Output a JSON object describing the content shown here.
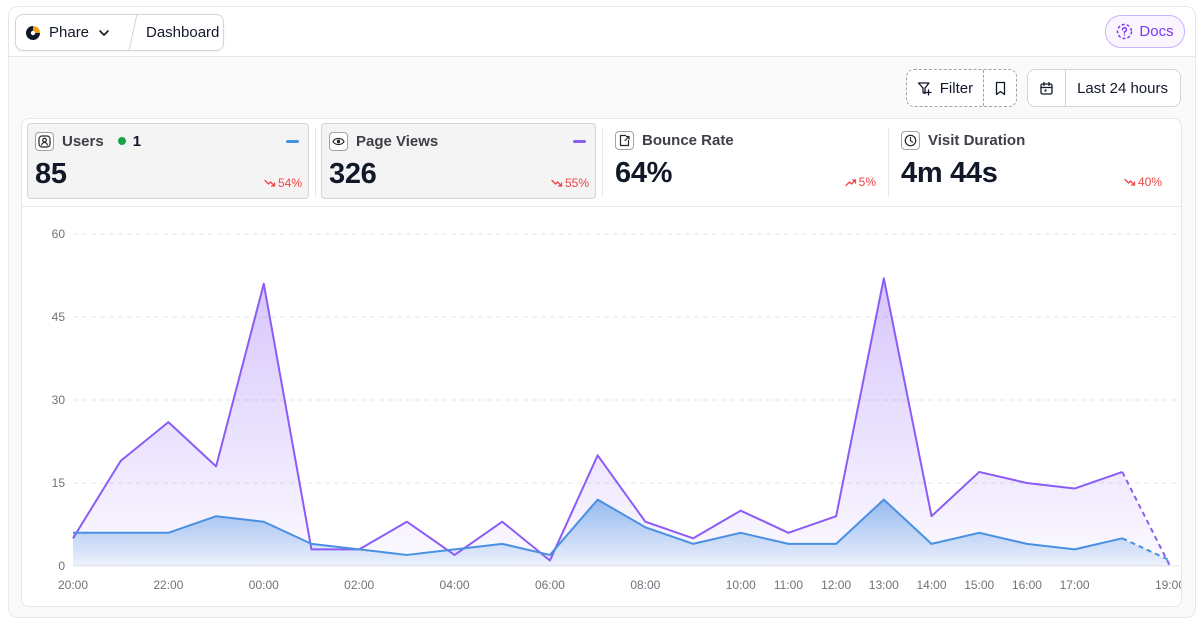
{
  "breadcrumb": {
    "project": "Phare",
    "page": "Dashboard"
  },
  "header": {
    "docs_label": "Docs"
  },
  "toolbar": {
    "filter_label": "Filter",
    "range_label": "Last 24 hours"
  },
  "stats": [
    {
      "label": "Users",
      "value": "85",
      "change": "54%",
      "trend": "down",
      "live_count": "1",
      "icon": "user-square-icon",
      "series_color": "#4a90e2"
    },
    {
      "label": "Page Views",
      "value": "326",
      "change": "55%",
      "trend": "down",
      "icon": "eye-icon",
      "series_color": "#8b5cf6"
    },
    {
      "label": "Bounce Rate",
      "value": "64%",
      "change": "5%",
      "trend": "up",
      "icon": "exit-page-icon"
    },
    {
      "label": "Visit Duration",
      "value": "4m 44s",
      "change": "40%",
      "trend": "down",
      "icon": "clock-icon"
    }
  ],
  "colors": {
    "accent": "#7c3aed",
    "users": "#4a90e2",
    "page_views": "#8b5cf6",
    "negative": "#ef4444",
    "live": "#16a34a"
  },
  "chart_data": {
    "type": "area",
    "x": [
      "20:00",
      "21:00",
      "22:00",
      "23:00",
      "00:00",
      "01:00",
      "02:00",
      "03:00",
      "04:00",
      "05:00",
      "06:00",
      "07:00",
      "08:00",
      "09:00",
      "10:00",
      "11:00",
      "12:00",
      "13:00",
      "14:00",
      "15:00",
      "16:00",
      "17:00",
      "18:00",
      "19:00"
    ],
    "x_tick_labels": [
      "20:00",
      "22:00",
      "00:00",
      "02:00",
      "04:00",
      "06:00",
      "08:00",
      "10:00",
      "11:00",
      "12:00",
      "13:00",
      "14:00",
      "15:00",
      "16:00",
      "17:00",
      "19:00"
    ],
    "y_ticks": [
      0,
      15,
      30,
      45,
      60
    ],
    "ylim": [
      0,
      60
    ],
    "grid": true,
    "series": [
      {
        "name": "Page Views",
        "color": "#8b5cf6",
        "values": [
          5,
          19,
          26,
          18,
          51,
          3,
          3,
          8,
          2,
          8,
          1,
          20,
          8,
          5,
          10,
          6,
          9,
          52,
          9,
          17,
          15,
          14,
          17,
          0
        ],
        "dashed_from_index": 22
      },
      {
        "name": "Users",
        "color": "#4a90e2",
        "values": [
          6,
          6,
          6,
          9,
          8,
          4,
          3,
          2,
          3,
          4,
          2,
          12,
          7,
          4,
          6,
          4,
          4,
          12,
          4,
          6,
          4,
          3,
          5,
          1
        ],
        "dashed_from_index": 22
      }
    ]
  }
}
